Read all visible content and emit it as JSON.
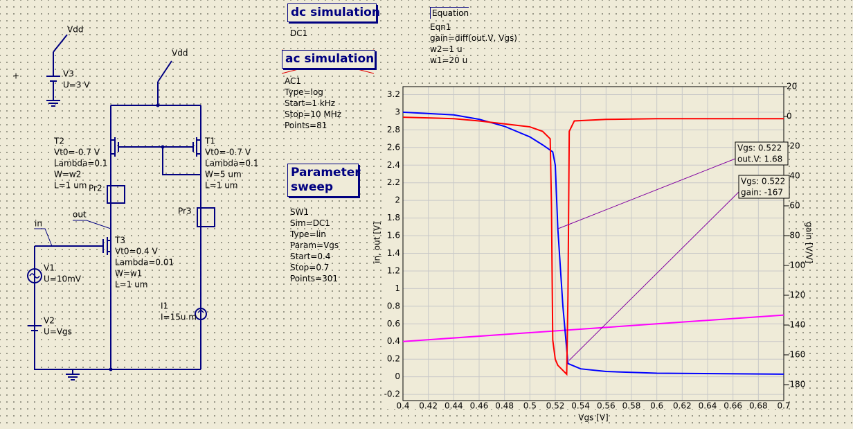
{
  "schematic": {
    "power_labels": [
      "Vdd",
      "Vdd"
    ],
    "wire_labels": [
      "out",
      "in"
    ],
    "probes": [
      "Pr2",
      "Pr3"
    ],
    "components": [
      {
        "name": "V3",
        "params": [
          "U=3 V"
        ]
      },
      {
        "name": "T2",
        "params": [
          "Vt0=-0.7 V",
          "Lambda=0.1",
          "W=w2",
          "L=1 um"
        ]
      },
      {
        "name": "T1",
        "params": [
          "Vt0=-0.7 V",
          "Lambda=0.1",
          "W=5 um",
          "L=1 um"
        ]
      },
      {
        "name": "T3",
        "params": [
          "Vt0=0.4 V",
          "Lambda=0.01",
          "W=w1",
          "L=1 um"
        ]
      },
      {
        "name": "V1",
        "params": [
          "U=10mV"
        ]
      },
      {
        "name": "V2",
        "params": [
          "U=Vgs"
        ]
      },
      {
        "name": "I1",
        "params": [
          "I=15u m"
        ]
      }
    ]
  },
  "simulations": [
    {
      "title": "dc simulation",
      "lines": [
        "DC1"
      ]
    },
    {
      "title": "ac simulation",
      "lines": [
        "AC1",
        "Type=log",
        "Start=1 kHz",
        "Stop=10 MHz",
        "Points=81"
      ]
    },
    {
      "title": "Parameter sweep",
      "lines": [
        "SW1",
        "Sim=DC1",
        "Type=lin",
        "Param=Vgs",
        "Start=0.4",
        "Stop=0.7",
        "Points=301"
      ]
    }
  ],
  "equation": {
    "title": "Equation",
    "lines": [
      "Eqn1",
      "gain=diff(out.V, Vgs)",
      "w2=1 u",
      "w1=20 u"
    ]
  },
  "chart_data": {
    "type": "line",
    "xlabel": "Vgs [V]",
    "ylabel": "in, out [V]",
    "y2label": "gain [V/V]",
    "xlim": [
      0.4,
      0.7
    ],
    "xticks": [
      0.4,
      0.42,
      0.44,
      0.46,
      0.48,
      0.5,
      0.52,
      0.54,
      0.56,
      0.58,
      0.6,
      0.62,
      0.64,
      0.66,
      0.68,
      0.7
    ],
    "ylim": [
      -0.27,
      3.29
    ],
    "yticks": [
      -0.2,
      0,
      0.2,
      0.4,
      0.6,
      0.8,
      1,
      1.2,
      1.4,
      1.6,
      1.8,
      2,
      2.2,
      2.4,
      2.6,
      2.8,
      3,
      3.2
    ],
    "y2lim": [
      -190.7,
      20
    ],
    "y2ticks": [
      20,
      0,
      -20,
      -40,
      -60,
      -80,
      -100,
      -120,
      -140,
      -160,
      -180
    ],
    "grid": true,
    "series": [
      {
        "color": "#ff00ff",
        "x": [
          0.4,
          0.7
        ],
        "values": [
          0.4,
          0.7
        ]
      },
      {
        "color": "#0000ff",
        "x": [
          0.4,
          0.44,
          0.46,
          0.48,
          0.5,
          0.51,
          0.518,
          0.52,
          0.522,
          0.526,
          0.53,
          0.54,
          0.56,
          0.6,
          0.7
        ],
        "values": [
          3.0,
          2.97,
          2.92,
          2.84,
          2.72,
          2.63,
          2.55,
          2.4,
          1.68,
          0.8,
          0.15,
          0.09,
          0.06,
          0.04,
          0.03
        ]
      },
      {
        "color": "#ff0000",
        "axis": "y2",
        "x": [
          0.4,
          0.44,
          0.46,
          0.48,
          0.5,
          0.51,
          0.516,
          0.517,
          0.518,
          0.52,
          0.522,
          0.529,
          0.53,
          0.531,
          0.535,
          0.56,
          0.6,
          0.7
        ],
        "values": [
          -0.5,
          -1.5,
          -3,
          -5,
          -7,
          -10,
          -15,
          -60,
          -150,
          -163,
          -167,
          -173,
          -120,
          -10,
          -3,
          -2,
          -1.5,
          -1.5
        ]
      }
    ],
    "markers": [
      {
        "lines": [
          "Vgs: 0.522",
          "out.V: 1.68"
        ]
      },
      {
        "lines": [
          "Vgs: 0.522",
          "gain: -167"
        ]
      }
    ]
  }
}
